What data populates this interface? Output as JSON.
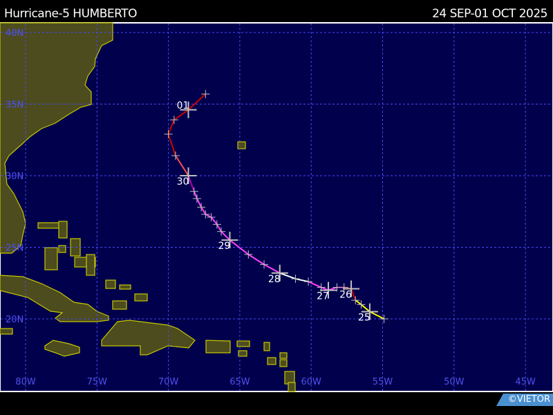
{
  "header": {
    "title": "Hurricane-5 HUMBERTO",
    "dates": "24 SEP-01 OCT 2025"
  },
  "credit": "©VIETOR",
  "colors": {
    "ocean": "#00004c",
    "land": "#4c4c1e",
    "coast": "#c8c800",
    "grid": "#4848ff",
    "ts": "#ffff00",
    "cat1": "#cc0000",
    "cat2": "#ff5050",
    "cat3": "#b000b0",
    "cat4": "#ff40ff",
    "cat5": "#ffffff"
  },
  "lat_labels": [
    "40N",
    "35N",
    "30N",
    "25N",
    "20N"
  ],
  "lon_labels": [
    "80W",
    "75W",
    "70W",
    "65W",
    "60W",
    "55W",
    "50W",
    "45W"
  ],
  "track": [
    {
      "lon": -54.9,
      "lat": 20.0,
      "cat": "ts"
    },
    {
      "lon": -55.9,
      "lat": 20.5,
      "cat": "ts",
      "day": "25"
    },
    {
      "lon": -56.5,
      "lat": 21.0,
      "cat": "ts"
    },
    {
      "lon": -56.9,
      "lat": 21.3,
      "cat": "ts"
    },
    {
      "lon": -57.2,
      "lat": 22.1,
      "cat": "cat1",
      "day": "26"
    },
    {
      "lon": -57.7,
      "lat": 22.2,
      "cat": "cat1"
    },
    {
      "lon": -58.2,
      "lat": 22.2,
      "cat": "cat3"
    },
    {
      "lon": -58.8,
      "lat": 22.0,
      "cat": "cat4",
      "day": "27"
    },
    {
      "lon": -59.3,
      "lat": 22.2,
      "cat": "cat4"
    },
    {
      "lon": -60.2,
      "lat": 22.6,
      "cat": "cat4"
    },
    {
      "lon": -61.1,
      "lat": 22.8,
      "cat": "cat5"
    },
    {
      "lon": -62.2,
      "lat": 23.2,
      "cat": "cat5",
      "day": "28"
    },
    {
      "lon": -63.3,
      "lat": 23.8,
      "cat": "cat4"
    },
    {
      "lon": -64.4,
      "lat": 24.5,
      "cat": "cat4"
    },
    {
      "lon": -65.7,
      "lat": 25.5,
      "cat": "cat4",
      "day": "29"
    },
    {
      "lon": -66.3,
      "lat": 26.1,
      "cat": "cat4"
    },
    {
      "lon": -66.6,
      "lat": 26.6,
      "cat": "cat4"
    },
    {
      "lon": -67.0,
      "lat": 27.1,
      "cat": "cat4"
    },
    {
      "lon": -67.4,
      "lat": 27.3,
      "cat": "cat4"
    },
    {
      "lon": -67.7,
      "lat": 27.8,
      "cat": "cat4"
    },
    {
      "lon": -68.0,
      "lat": 28.4,
      "cat": "cat4"
    },
    {
      "lon": -68.2,
      "lat": 28.9,
      "cat": "cat4"
    },
    {
      "lon": -68.6,
      "lat": 30.0,
      "cat": "cat3",
      "day": "30"
    },
    {
      "lon": -69.5,
      "lat": 31.4,
      "cat": "cat2"
    },
    {
      "lon": -70.0,
      "lat": 32.9,
      "cat": "cat1"
    },
    {
      "lon": -69.6,
      "lat": 33.9,
      "cat": "cat1"
    },
    {
      "lon": -68.6,
      "lat": 34.6,
      "cat": "cat1",
      "day": "01"
    },
    {
      "lon": -67.4,
      "lat": 35.7,
      "cat": "cat1"
    }
  ]
}
